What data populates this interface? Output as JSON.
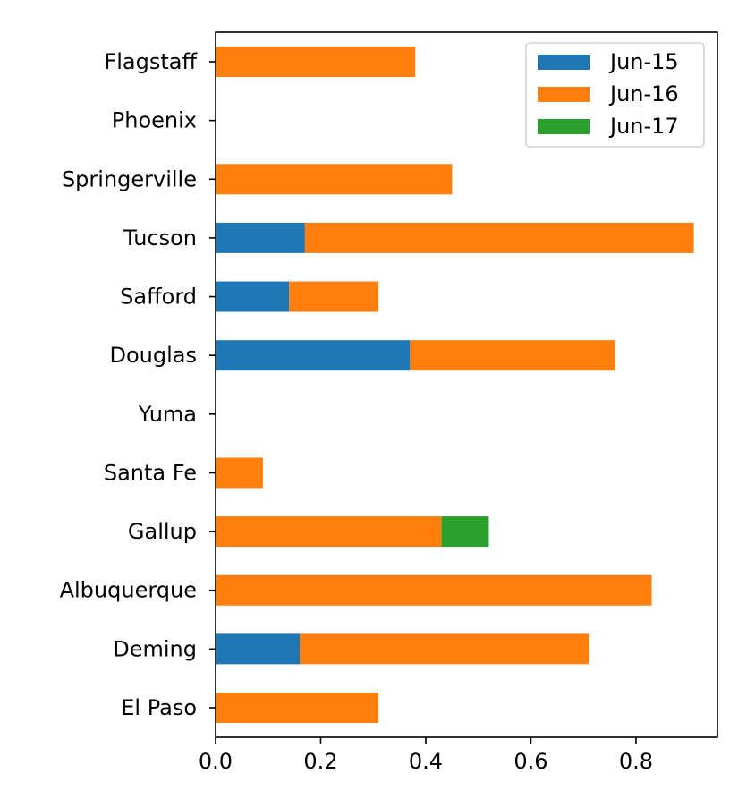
{
  "chart_data": {
    "type": "bar",
    "orientation": "horizontal",
    "stacked": true,
    "title": "",
    "xlabel": "",
    "ylabel": "",
    "categories": [
      "El Paso",
      "Deming",
      "Albuquerque",
      "Gallup",
      "Santa Fe",
      "Yuma",
      "Douglas",
      "Safford",
      "Tucson",
      "Springerville",
      "Phoenix",
      "Flagstaff"
    ],
    "series": [
      {
        "name": "Jun-15",
        "color": "#1f77b4",
        "values": [
          0,
          0.16,
          0,
          0,
          0,
          0,
          0.37,
          0.14,
          0.17,
          0,
          0,
          0
        ]
      },
      {
        "name": "Jun-16",
        "color": "#ff7f0e",
        "values": [
          0.31,
          0.55,
          0.83,
          0.43,
          0.09,
          0,
          0.39,
          0.17,
          0.74,
          0.45,
          0,
          0.38
        ]
      },
      {
        "name": "Jun-17",
        "color": "#2ca02c",
        "values": [
          0,
          0,
          0,
          0.09,
          0,
          0,
          0,
          0,
          0,
          0,
          0,
          0
        ]
      }
    ],
    "xlim": [
      0,
      0.955
    ],
    "xticks": [
      0.0,
      0.2,
      0.4,
      0.6,
      0.8
    ],
    "xtick_labels": [
      "0.0",
      "0.2",
      "0.4",
      "0.6",
      "0.8"
    ],
    "grid": false,
    "legend": {
      "position": "top-right",
      "entries": [
        "Jun-15",
        "Jun-16",
        "Jun-17"
      ]
    }
  }
}
